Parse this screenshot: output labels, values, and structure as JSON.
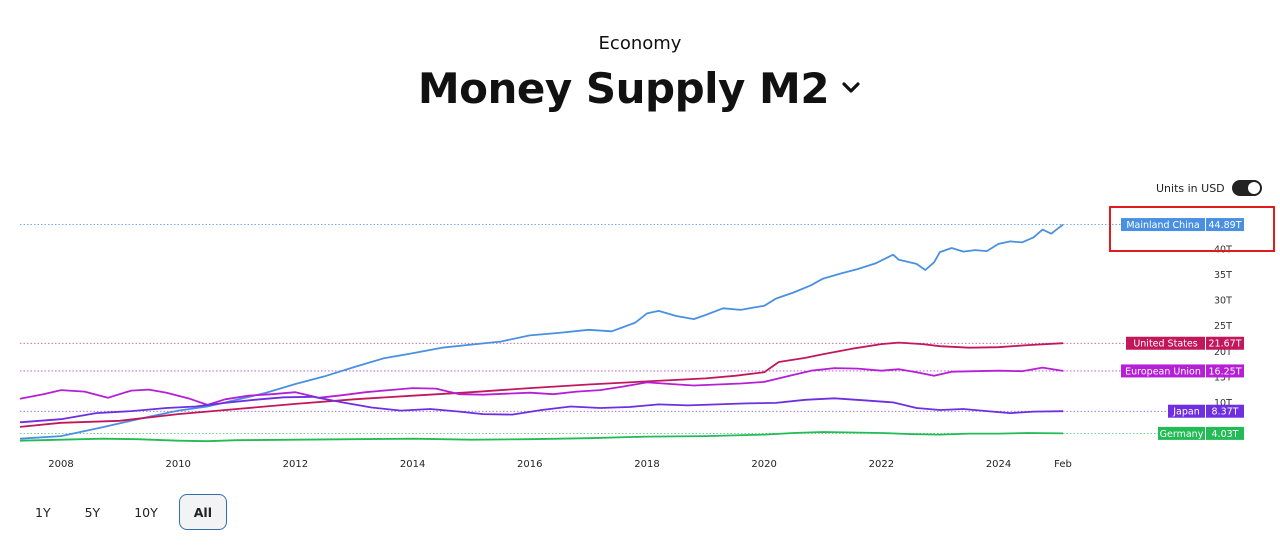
{
  "header": {
    "category": "Economy",
    "title": "Money Supply M2"
  },
  "units_toggle": {
    "label": "Units in USD",
    "on": true
  },
  "ranges": {
    "items": [
      "1Y",
      "5Y",
      "10Y",
      "All"
    ],
    "selected": "All"
  },
  "chart_data": {
    "type": "line",
    "title": "Money Supply M2",
    "x_unit": "year",
    "x_range": [
      2007.3,
      2025.1
    ],
    "x_ticks": [
      {
        "x": 2008,
        "label": "2008"
      },
      {
        "x": 2010,
        "label": "2010"
      },
      {
        "x": 2012,
        "label": "2012"
      },
      {
        "x": 2014,
        "label": "2014"
      },
      {
        "x": 2016,
        "label": "2016"
      },
      {
        "x": 2018,
        "label": "2018"
      },
      {
        "x": 2020,
        "label": "2020"
      },
      {
        "x": 2022,
        "label": "2022"
      },
      {
        "x": 2024,
        "label": "2024"
      },
      {
        "x": 2025.1,
        "label": "Feb"
      }
    ],
    "y_unit": "T USD",
    "y_range": [
      0,
      45
    ],
    "y_ticks": [
      {
        "value": 10,
        "label": "10T"
      },
      {
        "value": 15,
        "label": "15T"
      },
      {
        "value": 20,
        "label": "20T"
      },
      {
        "value": 25,
        "label": "25T"
      },
      {
        "value": 30,
        "label": "30T"
      },
      {
        "value": 35,
        "label": "35T"
      },
      {
        "value": 40,
        "label": "40T"
      }
    ],
    "highlight": "Mainland China",
    "series": [
      {
        "name": "Mainland China",
        "color": "#4a90e2",
        "last_label": "44.89T",
        "last_value": 44.89,
        "points": [
          [
            2007.3,
            3.0
          ],
          [
            2008,
            3.5
          ],
          [
            2008.7,
            5.2
          ],
          [
            2009.5,
            7.3
          ],
          [
            2010,
            8.5
          ],
          [
            2010.5,
            9.3
          ],
          [
            2011,
            10.6
          ],
          [
            2011.5,
            12.0
          ],
          [
            2012,
            13.7
          ],
          [
            2012.5,
            15.2
          ],
          [
            2013,
            17.0
          ],
          [
            2013.5,
            18.7
          ],
          [
            2014,
            19.7
          ],
          [
            2014.5,
            20.8
          ],
          [
            2015,
            21.4
          ],
          [
            2015.5,
            22.0
          ],
          [
            2016,
            23.2
          ],
          [
            2016.5,
            23.7
          ],
          [
            2017,
            24.3
          ],
          [
            2017.4,
            24.0
          ],
          [
            2017.8,
            25.7
          ],
          [
            2018,
            27.5
          ],
          [
            2018.2,
            28.0
          ],
          [
            2018.5,
            27.0
          ],
          [
            2018.8,
            26.4
          ],
          [
            2019,
            27.2
          ],
          [
            2019.3,
            28.5
          ],
          [
            2019.6,
            28.2
          ],
          [
            2019.8,
            28.6
          ],
          [
            2020,
            29.0
          ],
          [
            2020.2,
            30.4
          ],
          [
            2020.5,
            31.6
          ],
          [
            2020.8,
            33.0
          ],
          [
            2021,
            34.3
          ],
          [
            2021.3,
            35.3
          ],
          [
            2021.6,
            36.2
          ],
          [
            2021.9,
            37.3
          ],
          [
            2022.2,
            39.0
          ],
          [
            2022.3,
            38.0
          ],
          [
            2022.6,
            37.2
          ],
          [
            2022.75,
            36.0
          ],
          [
            2022.9,
            37.5
          ],
          [
            2023.0,
            39.5
          ],
          [
            2023.2,
            40.3
          ],
          [
            2023.4,
            39.6
          ],
          [
            2023.6,
            39.9
          ],
          [
            2023.8,
            39.7
          ],
          [
            2024.0,
            41.1
          ],
          [
            2024.2,
            41.6
          ],
          [
            2024.4,
            41.4
          ],
          [
            2024.6,
            42.4
          ],
          [
            2024.75,
            43.9
          ],
          [
            2024.9,
            43.1
          ],
          [
            2025.0,
            44.0
          ],
          [
            2025.1,
            44.89
          ]
        ]
      },
      {
        "name": "United States",
        "color": "#c2185b",
        "last_label": "21.67T",
        "last_value": 21.67,
        "points": [
          [
            2007.3,
            5.3
          ],
          [
            2008,
            6.1
          ],
          [
            2009,
            6.5
          ],
          [
            2010,
            7.8
          ],
          [
            2011,
            8.8
          ],
          [
            2012,
            9.8
          ],
          [
            2013,
            10.7
          ],
          [
            2014,
            11.4
          ],
          [
            2015,
            12.1
          ],
          [
            2016,
            12.9
          ],
          [
            2017,
            13.6
          ],
          [
            2018,
            14.2
          ],
          [
            2019,
            14.8
          ],
          [
            2019.5,
            15.3
          ],
          [
            2020,
            16.0
          ],
          [
            2020.25,
            18.0
          ],
          [
            2020.7,
            18.8
          ],
          [
            2021,
            19.5
          ],
          [
            2021.5,
            20.6
          ],
          [
            2022,
            21.5
          ],
          [
            2022.3,
            21.8
          ],
          [
            2022.7,
            21.5
          ],
          [
            2023,
            21.1
          ],
          [
            2023.5,
            20.8
          ],
          [
            2024,
            20.9
          ],
          [
            2024.5,
            21.3
          ],
          [
            2025.1,
            21.67
          ]
        ]
      },
      {
        "name": "European Union",
        "color": "#b51fd6",
        "last_label": "16.25T",
        "last_value": 16.25,
        "points": [
          [
            2007.3,
            10.8
          ],
          [
            2007.7,
            11.7
          ],
          [
            2008,
            12.5
          ],
          [
            2008.4,
            12.2
          ],
          [
            2008.8,
            11.0
          ],
          [
            2009.2,
            12.4
          ],
          [
            2009.5,
            12.6
          ],
          [
            2009.8,
            12.0
          ],
          [
            2010.2,
            10.8
          ],
          [
            2010.5,
            9.6
          ],
          [
            2010.8,
            10.7
          ],
          [
            2011.2,
            11.4
          ],
          [
            2011.6,
            11.7
          ],
          [
            2012,
            12.1
          ],
          [
            2012.4,
            11.0
          ],
          [
            2012.8,
            11.5
          ],
          [
            2013.2,
            12.1
          ],
          [
            2013.6,
            12.5
          ],
          [
            2014,
            12.9
          ],
          [
            2014.4,
            12.8
          ],
          [
            2014.8,
            11.7
          ],
          [
            2015.2,
            11.6
          ],
          [
            2015.6,
            11.8
          ],
          [
            2016,
            12.0
          ],
          [
            2016.4,
            11.7
          ],
          [
            2016.8,
            12.2
          ],
          [
            2017.2,
            12.5
          ],
          [
            2017.6,
            13.2
          ],
          [
            2018,
            14.0
          ],
          [
            2018.4,
            13.7
          ],
          [
            2018.8,
            13.4
          ],
          [
            2019.2,
            13.6
          ],
          [
            2019.6,
            13.8
          ],
          [
            2020,
            14.1
          ],
          [
            2020.4,
            15.2
          ],
          [
            2020.8,
            16.3
          ],
          [
            2021.2,
            16.8
          ],
          [
            2021.6,
            16.7
          ],
          [
            2022.0,
            16.3
          ],
          [
            2022.3,
            16.6
          ],
          [
            2022.6,
            16.0
          ],
          [
            2022.9,
            15.3
          ],
          [
            2023.2,
            16.1
          ],
          [
            2023.6,
            16.2
          ],
          [
            2024.0,
            16.3
          ],
          [
            2024.4,
            16.2
          ],
          [
            2024.75,
            16.9
          ],
          [
            2025.1,
            16.25
          ]
        ]
      },
      {
        "name": "Japan",
        "color": "#6f2ee0",
        "last_label": "8.37T",
        "last_value": 8.37,
        "points": [
          [
            2007.3,
            6.2
          ],
          [
            2008,
            6.8
          ],
          [
            2008.6,
            8.0
          ],
          [
            2009.2,
            8.4
          ],
          [
            2009.8,
            9.0
          ],
          [
            2010.3,
            9.3
          ],
          [
            2010.8,
            10.0
          ],
          [
            2011.3,
            10.6
          ],
          [
            2011.8,
            11.1
          ],
          [
            2012.3,
            11.2
          ],
          [
            2012.8,
            10.1
          ],
          [
            2013.3,
            9.1
          ],
          [
            2013.8,
            8.5
          ],
          [
            2014.3,
            8.8
          ],
          [
            2014.8,
            8.3
          ],
          [
            2015.2,
            7.8
          ],
          [
            2015.7,
            7.7
          ],
          [
            2016.2,
            8.6
          ],
          [
            2016.7,
            9.3
          ],
          [
            2017.2,
            9.0
          ],
          [
            2017.7,
            9.2
          ],
          [
            2018.2,
            9.7
          ],
          [
            2018.7,
            9.5
          ],
          [
            2019.2,
            9.7
          ],
          [
            2019.7,
            9.9
          ],
          [
            2020.2,
            10.0
          ],
          [
            2020.7,
            10.6
          ],
          [
            2021.2,
            10.9
          ],
          [
            2021.7,
            10.5
          ],
          [
            2022.2,
            10.1
          ],
          [
            2022.6,
            9.0
          ],
          [
            2023.0,
            8.6
          ],
          [
            2023.4,
            8.8
          ],
          [
            2023.8,
            8.4
          ],
          [
            2024.2,
            8.0
          ],
          [
            2024.6,
            8.3
          ],
          [
            2025.1,
            8.37
          ]
        ]
      },
      {
        "name": "Germany",
        "color": "#22bb55",
        "last_label": "4.03T",
        "last_value": 4.03,
        "points": [
          [
            2007.3,
            2.6
          ],
          [
            2008,
            2.8
          ],
          [
            2008.7,
            3.0
          ],
          [
            2009.3,
            2.9
          ],
          [
            2010,
            2.6
          ],
          [
            2010.5,
            2.5
          ],
          [
            2011,
            2.7
          ],
          [
            2012,
            2.8
          ],
          [
            2013,
            2.9
          ],
          [
            2014,
            3.0
          ],
          [
            2015,
            2.8
          ],
          [
            2016,
            2.9
          ],
          [
            2017,
            3.1
          ],
          [
            2018,
            3.4
          ],
          [
            2019,
            3.5
          ],
          [
            2020,
            3.8
          ],
          [
            2020.5,
            4.1
          ],
          [
            2021,
            4.3
          ],
          [
            2021.5,
            4.2
          ],
          [
            2022,
            4.1
          ],
          [
            2022.5,
            3.9
          ],
          [
            2023,
            3.8
          ],
          [
            2023.5,
            4.0
          ],
          [
            2024,
            4.0
          ],
          [
            2024.5,
            4.1
          ],
          [
            2025.1,
            4.03
          ]
        ]
      }
    ]
  }
}
